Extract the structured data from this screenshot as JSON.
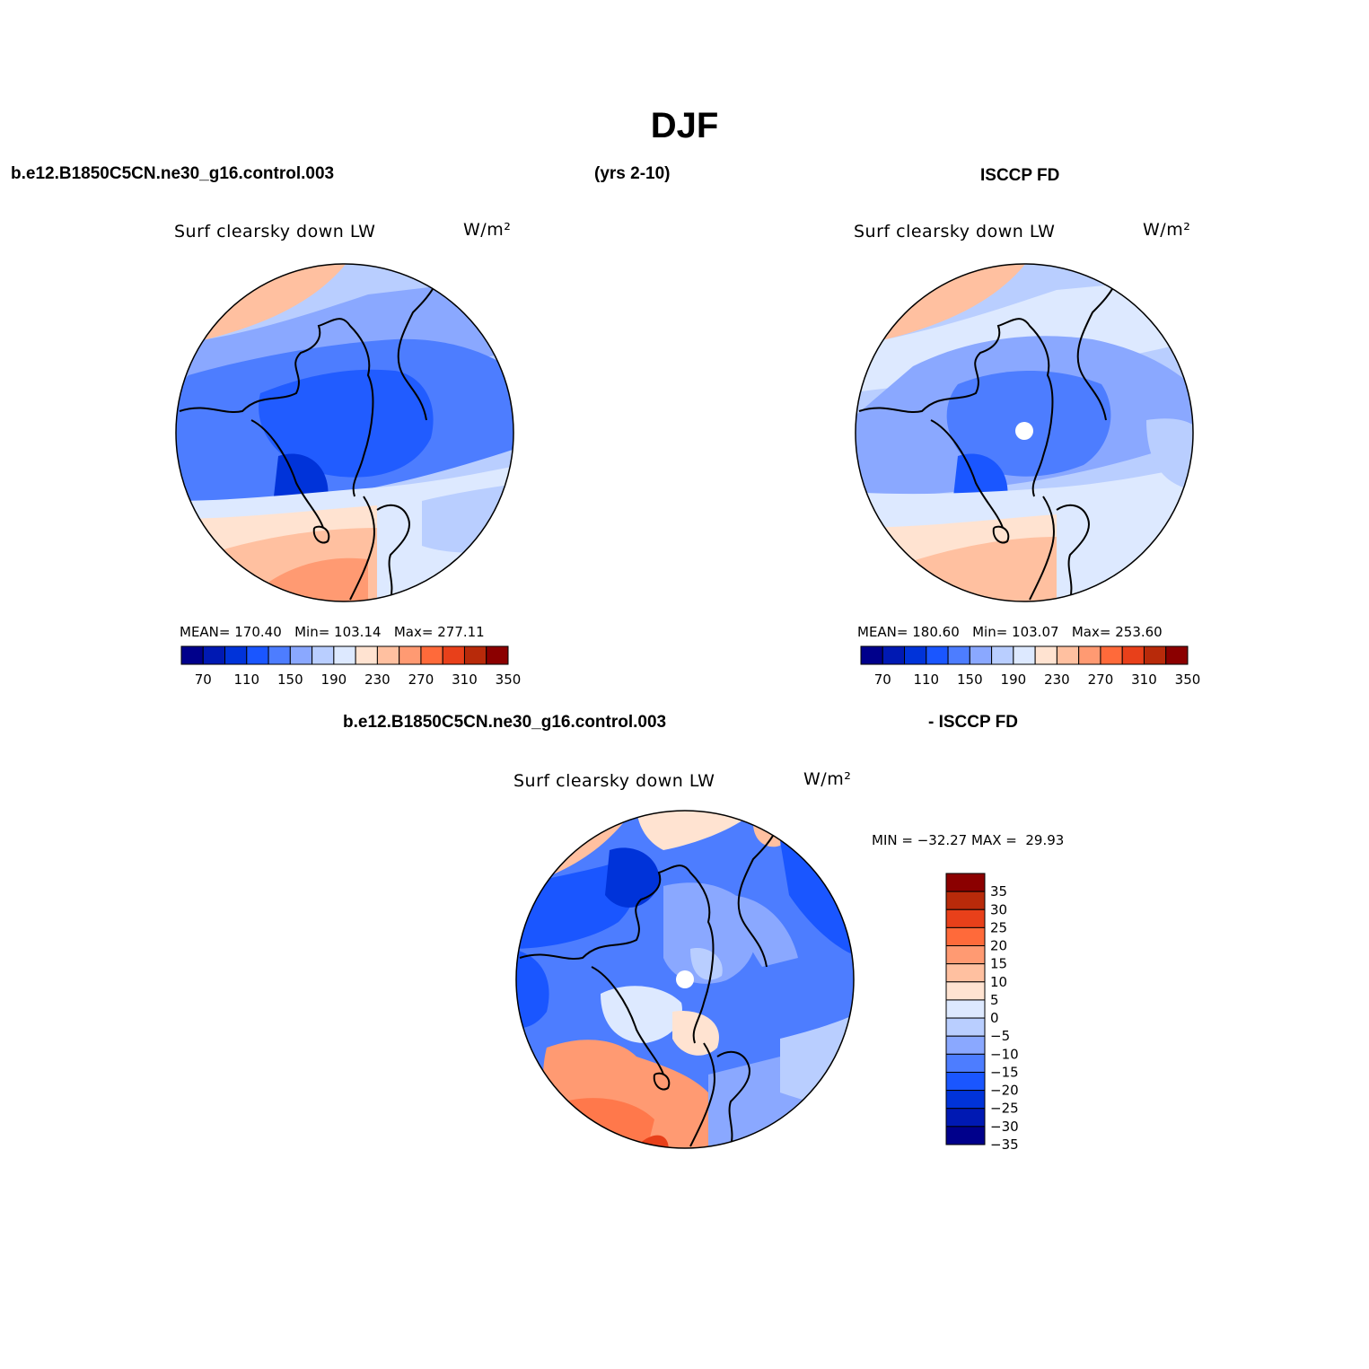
{
  "page": {
    "title": "DJF",
    "case_name": "b.e12.B1850C5CN.ne30_g16.control.003",
    "years": "(yrs 2-10)",
    "obs_name": "ISCCP FD",
    "diff_case": "b.e12.B1850C5CN.ne30_g16.control.003",
    "diff_obs": "- ISCCP FD"
  },
  "colors": {
    "levels12": [
      "#00008b",
      "#0019b3",
      "#0033d9",
      "#1a56ff",
      "#4d7dff",
      "#8aa8ff",
      "#b9ceff",
      "#dde9ff",
      "#ffe3d1",
      "#ffc0a0",
      "#ff9a72",
      "#ff6a3a",
      "#e8401a",
      "#b82a0a",
      "#8b0000"
    ],
    "levels_diff": [
      "#00008b",
      "#0019b3",
      "#0033d9",
      "#1a56ff",
      "#4d7dff",
      "#8aa8ff",
      "#b9ceff",
      "#dde9ff",
      "#ffe3d1",
      "#ffc0a0",
      "#ff9a72",
      "#ff6a3a",
      "#e8401a",
      "#b82a0a",
      "#8b0000"
    ]
  },
  "chart_data": [
    {
      "type": "heatmap",
      "title": "Surf clearsky down LW",
      "units": "W/m²",
      "projection": "north-polar-stereographic",
      "stats": {
        "mean_label": "MEAN=",
        "mean": "170.40",
        "min_label": "Min=",
        "min": "103.14",
        "max_label": "Max=",
        "max": "277.11"
      },
      "colorbar": {
        "orientation": "horizontal",
        "levels": [
          70,
          90,
          110,
          130,
          150,
          170,
          190,
          210,
          230,
          250,
          270,
          290,
          310,
          330,
          350
        ],
        "tick_labels": [
          "70",
          "110",
          "150",
          "190",
          "230",
          "270",
          "310",
          "350"
        ]
      }
    },
    {
      "type": "heatmap",
      "title": "Surf clearsky down LW",
      "units": "W/m²",
      "projection": "north-polar-stereographic",
      "stats": {
        "mean_label": "MEAN=",
        "mean": "180.60",
        "min_label": "Min=",
        "min": "103.07",
        "max_label": "Max=",
        "max": "253.60"
      },
      "colorbar": {
        "orientation": "horizontal",
        "levels": [
          70,
          90,
          110,
          130,
          150,
          170,
          190,
          210,
          230,
          250,
          270,
          290,
          310,
          330,
          350
        ],
        "tick_labels": [
          "70",
          "110",
          "150",
          "190",
          "230",
          "270",
          "310",
          "350"
        ]
      }
    },
    {
      "type": "heatmap",
      "title": "Surf clearsky down LW",
      "units": "W/m²",
      "projection": "north-polar-stereographic",
      "stats": {
        "min_label": "MIN =",
        "min": "−32.27",
        "max_label": "MAX =",
        "max": "29.93"
      },
      "colorbar": {
        "orientation": "vertical",
        "levels": [
          -35,
          -30,
          -25,
          -20,
          -15,
          -10,
          -5,
          0,
          5,
          10,
          15,
          20,
          25,
          30,
          35
        ],
        "tick_labels": [
          "35",
          "30",
          "25",
          "20",
          "15",
          "10",
          "5",
          "0",
          "−5",
          "−10",
          "−15",
          "−20",
          "−25",
          "−30",
          "−35"
        ]
      }
    }
  ]
}
